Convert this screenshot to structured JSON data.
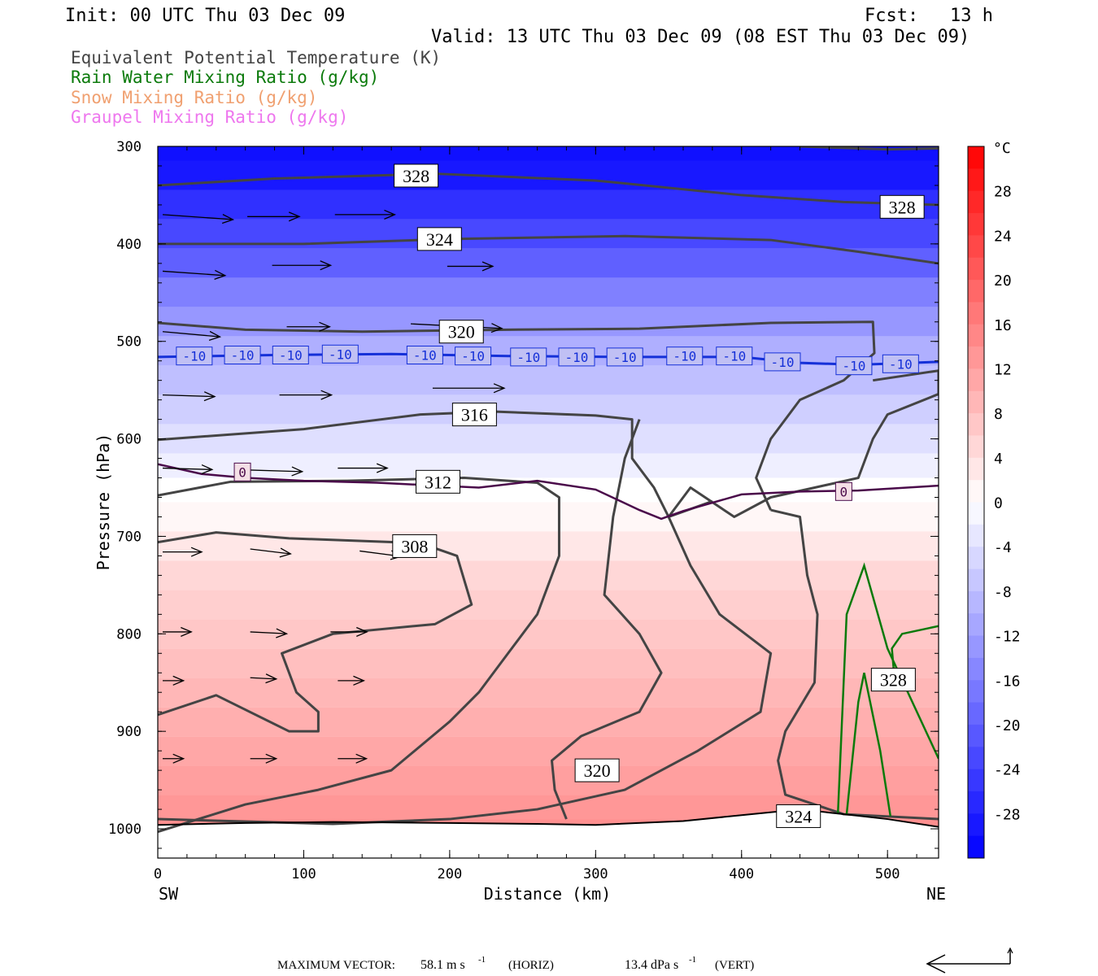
{
  "header": {
    "init": "Init: 00 UTC Thu 03 Dec 09",
    "fcst_label": "Fcst:",
    "fcst_value": "13 h",
    "valid": "Valid: 13 UTC Thu 03 Dec 09 (08 EST Thu 03 Dec 09)"
  },
  "legend": [
    {
      "label": "Equivalent Potential Temperature (K)",
      "color": "#444444"
    },
    {
      "label": "Rain Water Mixing Ratio (g/kg)",
      "color": "#0b7a0b"
    },
    {
      "label": "Snow Mixing Ratio (g/kg)",
      "color": "#f0a070"
    },
    {
      "label": "Graupel Mixing Ratio (g/kg)",
      "color": "#ee77ee"
    }
  ],
  "footer": {
    "max_vector_label": "MAXIMUM VECTOR:",
    "horiz_value": "58.1 m s",
    "horiz_unit": "(HORIZ)",
    "vert_value": "13.4 dPa s",
    "vert_unit": "(VERT)",
    "exponent": "-1"
  },
  "chart_data": {
    "type": "cross-section",
    "xlabel": "Distance (km)",
    "ylabel": "Pressure (hPa)",
    "x_range": [
      0,
      535
    ],
    "y_range": [
      300,
      1030
    ],
    "x_ticks": [
      0,
      100,
      200,
      300,
      400,
      500
    ],
    "y_ticks": [
      300,
      400,
      500,
      600,
      700,
      800,
      900,
      1000
    ],
    "x_end_labels": {
      "left": "SW",
      "right": "NE"
    },
    "colorbar": {
      "unit": "°C",
      "levels": [
        28,
        24,
        20,
        16,
        12,
        8,
        4,
        0,
        -4,
        -8,
        -12,
        -16,
        -20,
        -24,
        -28
      ],
      "range": [
        -32,
        32
      ],
      "colors": {
        "cold": "#0000ff",
        "mid": "#ffffff",
        "warm": "#ff0000"
      }
    },
    "temperature_field": [
      {
        "p": 300,
        "t": -30
      },
      {
        "p": 330,
        "t": -29
      },
      {
        "p": 360,
        "t": -26
      },
      {
        "p": 390,
        "t": -23
      },
      {
        "p": 420,
        "t": -20
      },
      {
        "p": 450,
        "t": -16
      },
      {
        "p": 480,
        "t": -13
      },
      {
        "p": 510,
        "t": -10
      },
      {
        "p": 540,
        "t": -8
      },
      {
        "p": 570,
        "t": -6
      },
      {
        "p": 600,
        "t": -4
      },
      {
        "p": 630,
        "t": -2
      },
      {
        "p": 650,
        "t": 0
      },
      {
        "p": 680,
        "t": 1
      },
      {
        "p": 710,
        "t": 3
      },
      {
        "p": 740,
        "t": 5
      },
      {
        "p": 770,
        "t": 6
      },
      {
        "p": 800,
        "t": 7
      },
      {
        "p": 830,
        "t": 8
      },
      {
        "p": 860,
        "t": 9
      },
      {
        "p": 890,
        "t": 10
      },
      {
        "p": 920,
        "t": 11
      },
      {
        "p": 950,
        "t": 12
      },
      {
        "p": 980,
        "t": 13
      },
      {
        "p": 1000,
        "t": 14
      }
    ],
    "isotherm_labels": [
      {
        "value": "-10",
        "x": 25,
        "p": 515
      },
      {
        "value": "-10",
        "x": 58,
        "p": 514
      },
      {
        "value": "-10",
        "x": 91,
        "p": 514
      },
      {
        "value": "-10",
        "x": 125,
        "p": 513
      },
      {
        "value": "-10",
        "x": 183,
        "p": 514
      },
      {
        "value": "-10",
        "x": 216,
        "p": 515
      },
      {
        "value": "-10",
        "x": 254,
        "p": 516
      },
      {
        "value": "-10",
        "x": 287,
        "p": 516
      },
      {
        "value": "-10",
        "x": 320,
        "p": 516
      },
      {
        "value": "-10",
        "x": 361,
        "p": 515
      },
      {
        "value": "-10",
        "x": 395,
        "p": 515
      },
      {
        "value": "-10",
        "x": 428,
        "p": 521
      },
      {
        "value": "-10",
        "x": 477,
        "p": 525
      },
      {
        "value": "-10",
        "x": 509,
        "p": 523
      },
      {
        "value": "0",
        "x": 58,
        "p": 634
      },
      {
        "value": "0",
        "x": 470,
        "p": 654
      }
    ],
    "isotherm_minus10": [
      [
        0,
        516
      ],
      [
        80,
        514
      ],
      [
        160,
        513
      ],
      [
        240,
        515
      ],
      [
        320,
        516
      ],
      [
        400,
        516
      ],
      [
        440,
        522
      ],
      [
        480,
        524
      ],
      [
        535,
        521
      ]
    ],
    "isotherm_zero": [
      [
        0,
        626
      ],
      [
        30,
        636
      ],
      [
        60,
        640
      ],
      [
        100,
        643
      ],
      [
        150,
        645
      ],
      [
        220,
        650
      ],
      [
        260,
        643
      ],
      [
        300,
        652
      ],
      [
        330,
        673
      ],
      [
        345,
        682
      ],
      [
        360,
        674
      ],
      [
        400,
        657
      ],
      [
        440,
        654
      ],
      [
        480,
        653
      ],
      [
        535,
        648
      ]
    ],
    "theta_e_contours": [
      {
        "value": 328,
        "points": [
          [
            0,
            340
          ],
          [
            80,
            333
          ],
          [
            190,
            328
          ],
          [
            300,
            335
          ],
          [
            400,
            350
          ],
          [
            470,
            357
          ],
          [
            535,
            360
          ]
        ]
      },
      {
        "value": 328,
        "points": [
          [
            440,
            300
          ],
          [
            500,
            303
          ],
          [
            535,
            302
          ]
        ]
      },
      {
        "value": 324,
        "points": [
          [
            0,
            400
          ],
          [
            100,
            400
          ],
          [
            200,
            395
          ],
          [
            320,
            392
          ],
          [
            420,
            396
          ],
          [
            480,
            408
          ],
          [
            535,
            420
          ]
        ]
      },
      {
        "value": 320,
        "points": [
          [
            0,
            481
          ],
          [
            60,
            488
          ],
          [
            140,
            490
          ],
          [
            240,
            488
          ],
          [
            330,
            487
          ],
          [
            420,
            481
          ],
          [
            490,
            480
          ],
          [
            491,
            512
          ],
          [
            470,
            540
          ],
          [
            440,
            560
          ],
          [
            420,
            600
          ],
          [
            410,
            640
          ],
          [
            420,
            673
          ]
        ]
      },
      {
        "value": 316,
        "points": [
          [
            0,
            601
          ],
          [
            100,
            590
          ],
          [
            180,
            575
          ],
          [
            230,
            572
          ],
          [
            300,
            576
          ],
          [
            325,
            580
          ],
          [
            325,
            620
          ],
          [
            340,
            650
          ],
          [
            350,
            680
          ],
          [
            380,
            664
          ]
        ]
      },
      {
        "value": 312,
        "points": [
          [
            0,
            658
          ],
          [
            50,
            644
          ],
          [
            130,
            643
          ],
          [
            210,
            640
          ],
          [
            260,
            645
          ],
          [
            275,
            660
          ],
          [
            275,
            720
          ],
          [
            260,
            780
          ],
          [
            240,
            820
          ],
          [
            220,
            860
          ],
          [
            200,
            890
          ],
          [
            160,
            940
          ],
          [
            110,
            960
          ],
          [
            60,
            975
          ],
          [
            0,
            1003
          ]
        ]
      },
      {
        "value": 308,
        "points": [
          [
            0,
            706
          ],
          [
            40,
            696
          ],
          [
            90,
            702
          ],
          [
            180,
            707
          ],
          [
            205,
            720
          ],
          [
            215,
            770
          ],
          [
            190,
            790
          ],
          [
            120,
            800
          ],
          [
            85,
            820
          ],
          [
            95,
            860
          ],
          [
            110,
            880
          ],
          [
            110,
            900
          ],
          [
            90,
            900
          ],
          [
            40,
            863
          ],
          [
            0,
            883
          ]
        ]
      },
      {
        "value": 320,
        "points": [
          [
            330,
            580
          ],
          [
            320,
            620
          ],
          [
            312,
            680
          ],
          [
            306,
            760
          ],
          [
            330,
            800
          ],
          [
            345,
            840
          ],
          [
            330,
            880
          ],
          [
            290,
            905
          ],
          [
            270,
            930
          ],
          [
            272,
            960
          ],
          [
            280,
            990
          ]
        ]
      },
      {
        "value": 324,
        "points": [
          [
            420,
            673
          ],
          [
            440,
            680
          ],
          [
            445,
            740
          ],
          [
            452,
            780
          ],
          [
            450,
            850
          ],
          [
            430,
            900
          ],
          [
            425,
            930
          ],
          [
            430,
            965
          ],
          [
            470,
            985
          ],
          [
            535,
            990
          ]
        ]
      },
      {
        "value": 328,
        "points": [
          [
            490,
            540
          ],
          [
            535,
            530
          ],
          [
            535,
            554
          ],
          [
            500,
            575
          ],
          [
            490,
            600
          ],
          [
            480,
            640
          ],
          [
            420,
            660
          ],
          [
            395,
            680
          ],
          [
            365,
            650
          ],
          [
            350,
            680
          ],
          [
            365,
            730
          ],
          [
            385,
            780
          ],
          [
            420,
            820
          ],
          [
            413,
            880
          ],
          [
            370,
            920
          ],
          [
            320,
            960
          ],
          [
            260,
            980
          ],
          [
            200,
            990
          ],
          [
            120,
            995
          ],
          [
            0,
            990
          ]
        ]
      }
    ],
    "theta_e_labels": [
      {
        "value": "328",
        "x": 177,
        "p": 330
      },
      {
        "value": "324",
        "x": 193,
        "p": 395
      },
      {
        "value": "320",
        "x": 208,
        "p": 490
      },
      {
        "value": "316",
        "x": 217,
        "p": 575
      },
      {
        "value": "312",
        "x": 192,
        "p": 644
      },
      {
        "value": "308",
        "x": 176,
        "p": 710
      },
      {
        "value": "328",
        "x": 510,
        "p": 362
      },
      {
        "value": "320",
        "x": 301,
        "p": 940
      },
      {
        "value": "324",
        "x": 439,
        "p": 987
      },
      {
        "value": "328",
        "x": 504,
        "p": 847
      }
    ],
    "rain_water_contours": [
      {
        "points": [
          [
            466,
            985
          ],
          [
            472,
            780
          ],
          [
            484,
            730
          ],
          [
            500,
            815
          ],
          [
            535,
            928
          ]
        ]
      },
      {
        "points": [
          [
            472,
            985
          ],
          [
            480,
            870
          ],
          [
            484,
            840
          ],
          [
            495,
            920
          ],
          [
            502,
            987
          ]
        ]
      },
      {
        "points": [
          [
            505,
            850
          ],
          [
            503,
            815
          ],
          [
            510,
            800
          ],
          [
            535,
            792
          ]
        ]
      }
    ],
    "terrain": [
      [
        0,
        996
      ],
      [
        60,
        994
      ],
      [
        120,
        993
      ],
      [
        200,
        994
      ],
      [
        260,
        995
      ],
      [
        300,
        996
      ],
      [
        360,
        992
      ],
      [
        400,
        986
      ],
      [
        440,
        980
      ],
      [
        470,
        985
      ],
      [
        500,
        990
      ],
      [
        535,
        998
      ]
    ],
    "wind_vectors": [
      {
        "x": 0,
        "p": 370,
        "u": 54,
        "w": 0.07
      },
      {
        "x": 58,
        "p": 372,
        "u": 40,
        "w": 0
      },
      {
        "x": 118,
        "p": 370,
        "u": 46,
        "w": 0
      },
      {
        "x": 0,
        "p": 428,
        "u": 48,
        "w": 0.07
      },
      {
        "x": 75,
        "p": 422,
        "u": 45,
        "w": 0
      },
      {
        "x": 195,
        "p": 423,
        "u": 35,
        "w": 0
      },
      {
        "x": 0,
        "p": 490,
        "u": 44,
        "w": 0.09
      },
      {
        "x": 85,
        "p": 485,
        "u": 33,
        "w": 0
      },
      {
        "x": 170,
        "p": 482,
        "u": 70,
        "w": 0.05
      },
      {
        "x": 0,
        "p": 555,
        "u": 40,
        "w": 0.03
      },
      {
        "x": 80,
        "p": 555,
        "u": 40,
        "w": 0
      },
      {
        "x": 185,
        "p": 548,
        "u": 55,
        "w": 0
      },
      {
        "x": 0,
        "p": 630,
        "u": 38,
        "w": 0.03
      },
      {
        "x": 60,
        "p": 632,
        "u": 40,
        "w": 0.03
      },
      {
        "x": 120,
        "p": 630,
        "u": 38,
        "w": 0
      },
      {
        "x": 0,
        "p": 716,
        "u": 30,
        "w": 0
      },
      {
        "x": 60,
        "p": 713,
        "u": 31,
        "w": 0.12
      },
      {
        "x": 135,
        "p": 715,
        "u": 32,
        "w": 0.13
      },
      {
        "x": 0,
        "p": 798,
        "u": 22,
        "w": 0
      },
      {
        "x": 60,
        "p": 798,
        "u": 28,
        "w": 0.05
      },
      {
        "x": 115,
        "p": 798,
        "u": 28,
        "w": 0
      },
      {
        "x": 0,
        "p": 848,
        "u": 16,
        "w": 0
      },
      {
        "x": 60,
        "p": 845,
        "u": 20,
        "w": 0.05
      },
      {
        "x": 120,
        "p": 848,
        "u": 20,
        "w": 0
      },
      {
        "x": 0,
        "p": 928,
        "u": 16,
        "w": 0
      },
      {
        "x": 60,
        "p": 928,
        "u": 20,
        "w": 0
      },
      {
        "x": 120,
        "p": 928,
        "u": 22,
        "w": 0
      }
    ]
  }
}
